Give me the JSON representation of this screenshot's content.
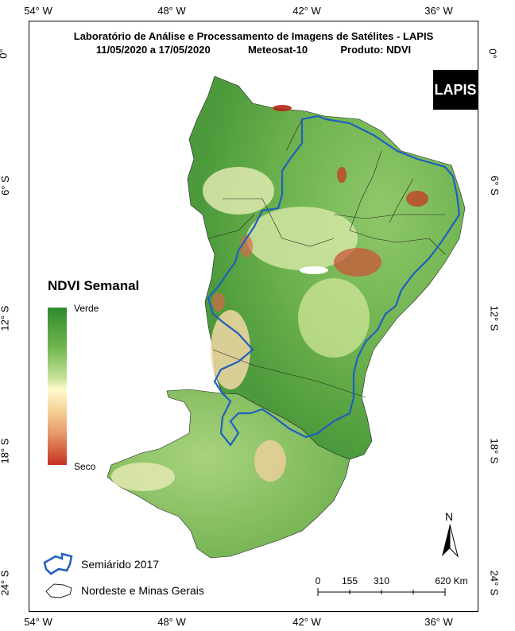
{
  "title": {
    "line1": "Laboratório de Análise e Processamento de Imagens de Satélites - LAPIS",
    "dates": "11/05/2020  a  17/05/2020",
    "satellite": "Meteosat-10",
    "product": "Produto: NDVI"
  },
  "logo": "LAPIS",
  "axes": {
    "longitudes": [
      "54° W",
      "48° W",
      "42° W",
      "36° W"
    ],
    "latitudes": [
      "0°",
      "6° S",
      "12° S",
      "18° S",
      "24° S"
    ]
  },
  "legend": {
    "title": "NDVI Semanal",
    "high": "Verde",
    "low": "Seco",
    "items": [
      "Semiárido 2017",
      "Nordeste e Minas Gerais"
    ]
  },
  "scale_bar": {
    "ticks": [
      "0",
      "155",
      "310",
      "620 Km"
    ]
  },
  "north_arrow": "N",
  "colors": {
    "vegetation_dark": "#3f8f3a",
    "vegetation_mid": "#7fbf5a",
    "dry": "#c83020",
    "semiarid_outline": "#1f5fbf"
  }
}
